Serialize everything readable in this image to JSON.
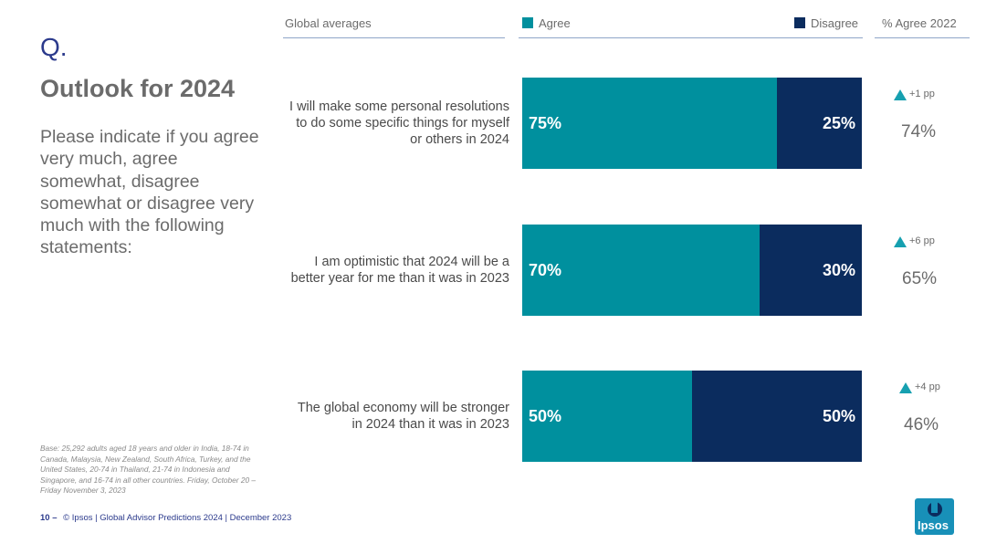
{
  "slide": {
    "q_label": "Q.",
    "title": "Outlook for 2024",
    "question": "Please indicate if you agree very much, agree somewhat, disagree somewhat or disagree very much with the following statements:",
    "base_note": "Base: 25,292 adults aged 18 years and older in India, 18-74 in Canada, Malaysia, New Zealand, South Africa, Turkey, and the United States, 20-74 in Thailand, 21-74 in Indonesia and Singapore, and 16-74 in all other countries. Friday, October 20 – Friday November 3, 2023",
    "page_number": "10 –",
    "footer_text": "© Ipsos | Global Advisor Predictions 2024 | December 2023",
    "logo_text": "Ipsos"
  },
  "headers": {
    "global_averages": "Global averages",
    "agree": "Agree",
    "disagree": "Disagree",
    "agree_2022": "% Agree 2022"
  },
  "colors": {
    "agree": "#00909e",
    "disagree": "#0b2c5e",
    "accent": "#16a0b0",
    "title_blue": "#2b3a8c"
  },
  "chart_data": {
    "type": "bar",
    "orientation": "horizontal",
    "stacked": true,
    "xlim": [
      0,
      100
    ],
    "categories": [
      "I will make some personal resolutions to do some specific things for myself or others in 2024",
      "I am optimistic that 2024 will be a better year for me than it was in 2023",
      "The global economy will be stronger in 2024 than it was in 2023"
    ],
    "series": [
      {
        "name": "Agree",
        "values": [
          75,
          70,
          50
        ],
        "labels": [
          "75%",
          "70%",
          "50%"
        ]
      },
      {
        "name": "Disagree",
        "values": [
          25,
          30,
          50
        ],
        "labels": [
          "25%",
          "30%",
          "50%"
        ]
      }
    ],
    "agree_2022": {
      "values": [
        74,
        65,
        46
      ],
      "labels": [
        "74%",
        "65%",
        "46%"
      ]
    },
    "change": {
      "values": [
        1,
        6,
        4
      ],
      "labels": [
        "+1 pp",
        "+6 pp",
        "+4 pp"
      ]
    }
  }
}
